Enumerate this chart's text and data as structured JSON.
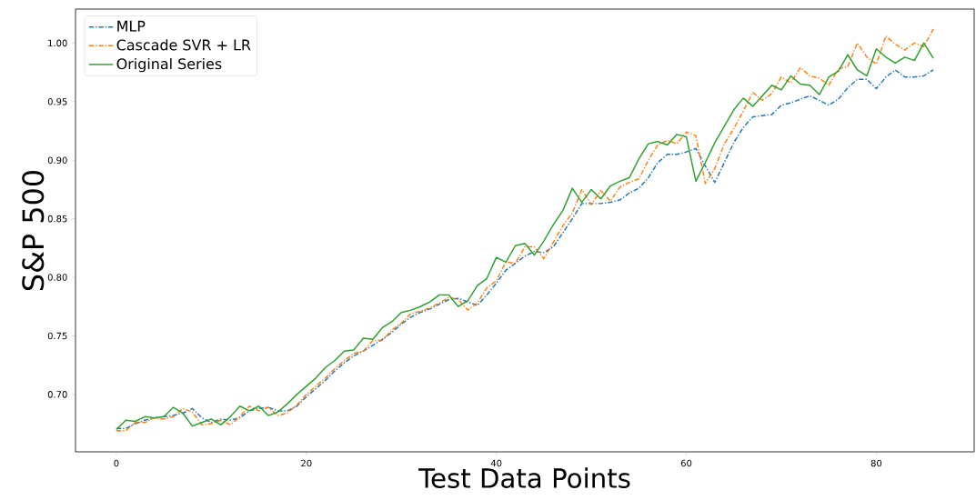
{
  "chart_data": {
    "type": "line",
    "xlabel": "Test Data Points",
    "ylabel": "S&P 500",
    "x": [
      0,
      1,
      2,
      3,
      4,
      5,
      6,
      7,
      8,
      9,
      10,
      11,
      12,
      13,
      14,
      15,
      16,
      17,
      18,
      19,
      20,
      21,
      22,
      23,
      24,
      25,
      26,
      27,
      28,
      29,
      30,
      31,
      32,
      33,
      34,
      35,
      36,
      37,
      38,
      39,
      40,
      41,
      42,
      43,
      44,
      45,
      46,
      47,
      48,
      49,
      50,
      51,
      52,
      53,
      54,
      55,
      56,
      57,
      58,
      59,
      60,
      61,
      62,
      63,
      64,
      65,
      66,
      67,
      68,
      69,
      70,
      71,
      72,
      73,
      74,
      75,
      76,
      77,
      78,
      79,
      80,
      81,
      82,
      83,
      84,
      85,
      86
    ],
    "series": [
      {
        "name": "MLP",
        "color": "#1f77b4",
        "line_style": "dashdot",
        "values": [
          0.671,
          0.671,
          0.675,
          0.678,
          0.68,
          0.681,
          0.682,
          0.684,
          0.688,
          0.68,
          0.676,
          0.679,
          0.678,
          0.68,
          0.686,
          0.688,
          0.689,
          0.686,
          0.686,
          0.69,
          0.698,
          0.705,
          0.712,
          0.72,
          0.727,
          0.733,
          0.737,
          0.742,
          0.747,
          0.753,
          0.76,
          0.766,
          0.77,
          0.773,
          0.777,
          0.781,
          0.782,
          0.779,
          0.776,
          0.785,
          0.795,
          0.806,
          0.812,
          0.818,
          0.822,
          0.821,
          0.826,
          0.838,
          0.85,
          0.863,
          0.863,
          0.863,
          0.864,
          0.866,
          0.872,
          0.876,
          0.885,
          0.898,
          0.905,
          0.905,
          0.907,
          0.91,
          0.895,
          0.881,
          0.898,
          0.915,
          0.928,
          0.937,
          0.938,
          0.939,
          0.947,
          0.949,
          0.952,
          0.955,
          0.951,
          0.947,
          0.952,
          0.962,
          0.969,
          0.969,
          0.961,
          0.971,
          0.977,
          0.971,
          0.971,
          0.972,
          0.977
        ]
      },
      {
        "name": "Cascade SVR + LR",
        "color": "#ff7f0e",
        "line_style": "dashdot",
        "values": [
          0.669,
          0.669,
          0.676,
          0.676,
          0.68,
          0.679,
          0.681,
          0.688,
          0.685,
          0.674,
          0.675,
          0.678,
          0.674,
          0.681,
          0.69,
          0.686,
          0.689,
          0.682,
          0.684,
          0.691,
          0.7,
          0.707,
          0.714,
          0.722,
          0.729,
          0.735,
          0.737,
          0.746,
          0.746,
          0.755,
          0.761,
          0.769,
          0.771,
          0.774,
          0.778,
          0.783,
          0.781,
          0.772,
          0.778,
          0.791,
          0.797,
          0.813,
          0.812,
          0.826,
          0.826,
          0.816,
          0.83,
          0.844,
          0.855,
          0.875,
          0.862,
          0.874,
          0.865,
          0.877,
          0.881,
          0.884,
          0.9,
          0.913,
          0.917,
          0.914,
          0.924,
          0.921,
          0.88,
          0.893,
          0.914,
          0.927,
          0.942,
          0.958,
          0.951,
          0.957,
          0.971,
          0.966,
          0.979,
          0.972,
          0.97,
          0.964,
          0.978,
          0.98,
          1.0,
          0.988,
          0.982,
          1.006,
          0.999,
          0.994,
          1.0,
          0.997,
          1.012
        ]
      },
      {
        "name": "Original Series",
        "color": "#2ca02c",
        "line_style": "solid",
        "values": [
          0.67,
          0.678,
          0.677,
          0.681,
          0.68,
          0.681,
          0.689,
          0.684,
          0.673,
          0.676,
          0.679,
          0.674,
          0.681,
          0.69,
          0.686,
          0.69,
          0.682,
          0.685,
          0.692,
          0.7,
          0.707,
          0.714,
          0.723,
          0.729,
          0.737,
          0.738,
          0.748,
          0.747,
          0.757,
          0.762,
          0.77,
          0.772,
          0.775,
          0.779,
          0.785,
          0.785,
          0.775,
          0.78,
          0.793,
          0.799,
          0.817,
          0.813,
          0.827,
          0.829,
          0.819,
          0.831,
          0.845,
          0.857,
          0.876,
          0.864,
          0.875,
          0.867,
          0.878,
          0.882,
          0.885,
          0.901,
          0.914,
          0.916,
          0.913,
          0.922,
          0.92,
          0.882,
          0.898,
          0.915,
          0.929,
          0.943,
          0.953,
          0.946,
          0.955,
          0.964,
          0.96,
          0.972,
          0.965,
          0.964,
          0.956,
          0.971,
          0.976,
          0.99,
          0.977,
          0.972,
          0.995,
          0.988,
          0.983,
          0.988,
          0.985,
          1.0,
          0.987
        ]
      }
    ],
    "xlim": [
      -4.3,
      90.3
    ],
    "ylim": [
      0.651,
      1.029
    ],
    "xticks": [
      0,
      20,
      40,
      60,
      80
    ],
    "yticks": [
      {
        "value": 0.7,
        "label": "0.70"
      },
      {
        "value": 0.75,
        "label": "0.75"
      },
      {
        "value": 0.8,
        "label": "0.80"
      },
      {
        "value": 0.85,
        "label": "0.85"
      },
      {
        "value": 0.9,
        "label": "0.90"
      },
      {
        "value": 0.95,
        "label": "0.95"
      },
      {
        "value": 1.0,
        "label": "1.00"
      }
    ],
    "legend": "top left",
    "grid": false,
    "marker": "none"
  }
}
